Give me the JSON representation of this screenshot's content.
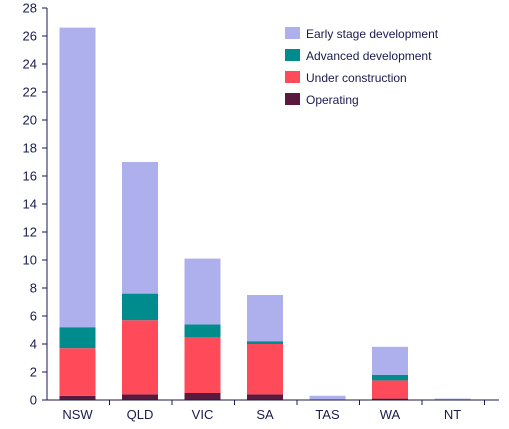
{
  "chart_data": {
    "type": "bar",
    "stacked": true,
    "categories": [
      "NSW",
      "QLD",
      "VIC",
      "SA",
      "TAS",
      "WA",
      "NT"
    ],
    "series": [
      {
        "name": "Operating",
        "color": "#5a1a3f",
        "values": [
          0.3,
          0.4,
          0.5,
          0.4,
          0.0,
          0.1,
          0.0
        ]
      },
      {
        "name": "Under construction",
        "color": "#ff4a5a",
        "values": [
          3.4,
          5.3,
          4.0,
          3.6,
          0.0,
          1.3,
          0.0
        ]
      },
      {
        "name": "Advanced development",
        "color": "#008c8c",
        "values": [
          1.5,
          1.9,
          0.9,
          0.2,
          0.0,
          0.4,
          0.0
        ]
      },
      {
        "name": "Early stage development",
        "color": "#aeb0ee",
        "values": [
          21.4,
          9.4,
          4.7,
          3.3,
          0.3,
          2.0,
          0.1
        ]
      }
    ],
    "ylim": [
      0,
      28
    ],
    "yticks": [
      "0",
      "2",
      "4",
      "6",
      "8",
      "10",
      "12",
      "14",
      "16",
      "18",
      "20",
      "22",
      "24",
      "26",
      "28"
    ],
    "ytick_values": [
      0,
      2,
      4,
      6,
      8,
      10,
      12,
      14,
      16,
      18,
      20,
      22,
      24,
      26,
      28
    ],
    "grid": false,
    "legend_position": "top-right",
    "legend_order": [
      "Early stage development",
      "Advanced development",
      "Under construction",
      "Operating"
    ],
    "axis_color": "#1a1a4e"
  }
}
